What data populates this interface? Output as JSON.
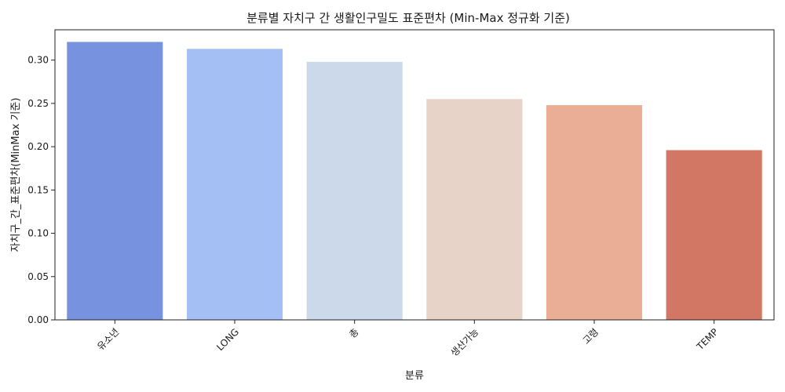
{
  "chart_data": {
    "type": "bar",
    "title": "분류별 자치구 간 생활인구밀도 표준편차 (Min-Max 정규화 기준)",
    "xlabel": "분류",
    "ylabel": "자치구_간_표준편차(MinMax 기준)",
    "categories": [
      "유소년",
      "LONG",
      "총",
      "생산가능",
      "고령",
      "TEMP"
    ],
    "values": [
      0.321,
      0.313,
      0.298,
      0.255,
      0.248,
      0.196
    ],
    "colors": [
      "#7793DF",
      "#A3BFF3",
      "#CCD9EA",
      "#E7D3C8",
      "#EAAE97",
      "#D27764"
    ],
    "ylim": [
      0,
      0.335
    ],
    "yticks": [
      0.0,
      0.05,
      0.1,
      0.15,
      0.2,
      0.25,
      0.3
    ],
    "ytick_labels": [
      "0.00",
      "0.05",
      "0.10",
      "0.15",
      "0.20",
      "0.25",
      "0.30"
    ],
    "grid": false,
    "legend": "none"
  }
}
